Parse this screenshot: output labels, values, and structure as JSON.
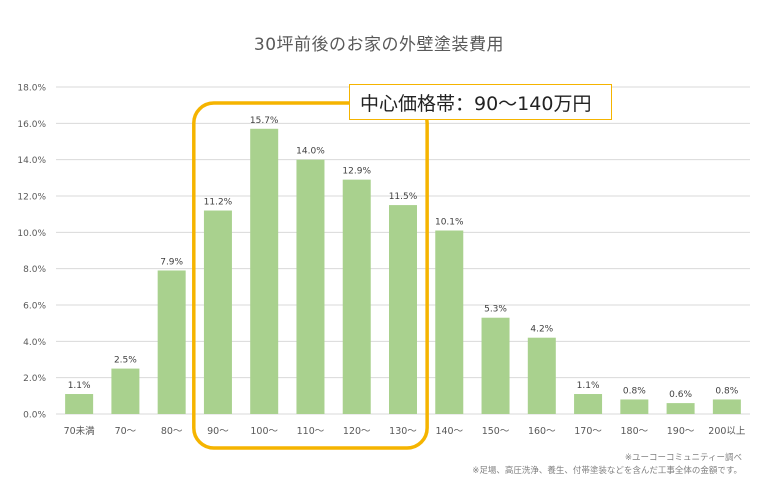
{
  "title": "30坪前後のお家の外壁塗装費用",
  "callout": "中心価格帯：90～140万円",
  "notes": [
    "※ユーコーコミュニティー調べ",
    "※足場、高圧洗浄、養生、付帯塗装などを含んだ工事全体の金額です。"
  ],
  "colors": {
    "bar": "#a9d18e",
    "highlight": "#f5b400",
    "grid": "#d9d9d9",
    "text": "#595959"
  },
  "chart_data": {
    "type": "bar",
    "title": "30坪前後のお家の外壁塗装費用",
    "categories": [
      "70未満",
      "70～",
      "80～",
      "90～",
      "100～",
      "110～",
      "120～",
      "130～",
      "140～",
      "150～",
      "160～",
      "170～",
      "180～",
      "190～",
      "200以上"
    ],
    "values": [
      1.1,
      2.5,
      7.9,
      11.2,
      15.7,
      14.0,
      12.9,
      11.5,
      10.1,
      5.3,
      4.2,
      1.1,
      0.8,
      0.6,
      0.8
    ],
    "value_labels": [
      "1.1%",
      "2.5%",
      "7.9%",
      "11.2%",
      "15.7%",
      "14.0%",
      "12.9%",
      "11.5%",
      "10.1%",
      "5.3%",
      "4.2%",
      "1.1%",
      "0.8%",
      "0.6%",
      "0.8%"
    ],
    "yticks": [
      "0.0%",
      "2.0%",
      "4.0%",
      "6.0%",
      "8.0%",
      "10.0%",
      "12.0%",
      "14.0%",
      "16.0%",
      "18.0%"
    ],
    "ylim": [
      0,
      18
    ],
    "grid": true,
    "highlight_range": [
      "90～",
      "130～"
    ]
  }
}
